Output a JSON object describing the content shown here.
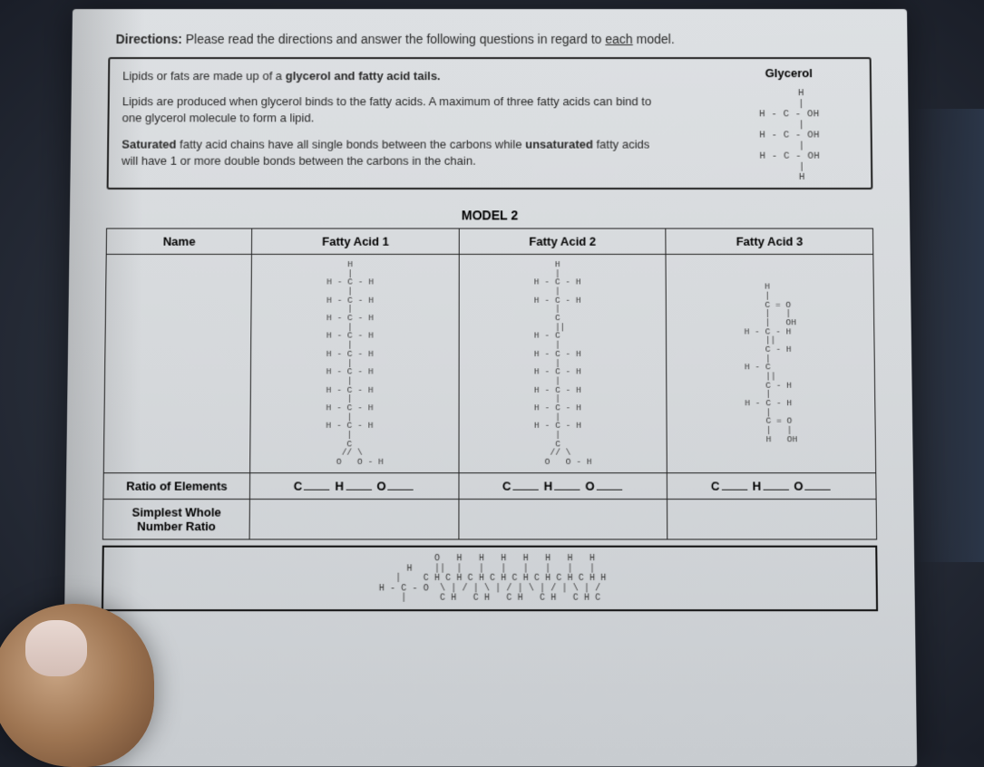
{
  "directions": {
    "label": "Directions:",
    "text": "Please read the directions and answer the following questions in regard to each model."
  },
  "info": {
    "line1": "Lipids or fats are made up of a glycerol and fatty acid tails.",
    "line2": "Lipids are produced when glycerol binds to the fatty acids.  A maximum of three fatty acids can bind to one glycerol molecule to form a lipid.",
    "line3": "Saturated fatty acid chains have all single bonds between the carbons while unsaturated fatty acids will have 1 or more double bonds between the carbons in the chain."
  },
  "glycerol": {
    "title": "Glycerol",
    "rows": [
      "    H",
      "    |",
      "H - C - OH",
      "    |",
      "H - C - OH",
      "    |",
      "H - C - OH",
      "    |",
      "    H"
    ]
  },
  "model": {
    "title": "MODEL 2",
    "headers": {
      "name": "Name",
      "fa1": "Fatty Acid 1",
      "fa2": "Fatty Acid 2",
      "fa3": "Fatty Acid 3"
    },
    "row_labels": {
      "ratio": "Ratio of Elements",
      "simplest": "Simplest Whole Number Ratio"
    },
    "ratio_template": {
      "c": "C",
      "h": "H",
      "o": "O"
    }
  },
  "structures": {
    "fa1": "    H\n    |\nH - C - H\n    |\nH - C - H\n    |\nH - C - H\n    |\nH - C - H\n    |\nH - C - H\n    |\nH - C - H\n    |\nH - C - H\n    |\nH - C - H\n    |\nH - C - H\n    |\n    C\n   // \\\n  O   O - H",
    "fa2": "    H\n    |\nH - C - H\n    |\nH - C - H\n    |\n    C\n    ||\nH - C\n    |\nH - C - H\n    |\nH - C - H\n    |\nH - C - H\n    |\nH - C - H\n    |\nH - C - H\n    |\n    C\n   // \\\n  O   O - H",
    "fa3": "    H\n    |\n    C = O\n    |   |\n    |   OH\nH - C - H\n    ||\n    C - H\n    |\nH - C\n    ||\n    C - H\n    |\nH - C - H\n    |\n    C = O\n    |   |\n    H   OH",
    "bottom": "         O   H   H   H   H   H   H   H\n    H    ||  |   |   |   |   |   |   |\n    |    C H C H C H C H C H C H C H C H H\nH - C - O  \\ | / | \\ | / | \\ | / | \\ | /\n    |      C H   C H   C H   C H   C H C"
  },
  "colors": {
    "paper_bg": "#d8dcdf",
    "ink": "#222222",
    "border": "#222222"
  }
}
